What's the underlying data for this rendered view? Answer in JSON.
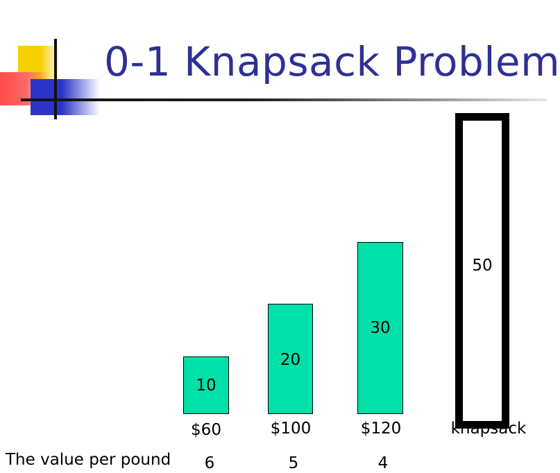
{
  "title": "0-1 Knapsack Problem",
  "items": [
    {
      "weight": "10",
      "price": "$60",
      "value_per_pound": "6"
    },
    {
      "weight": "20",
      "price": "$100",
      "value_per_pound": "5"
    },
    {
      "weight": "30",
      "price": "$120",
      "value_per_pound": "4"
    }
  ],
  "knapsack": {
    "capacity": "50",
    "label": "knapsack"
  },
  "value_per_pound_label": "The value per pound",
  "colors": {
    "item_fill": "#00e0a8",
    "title": "#2e3192"
  }
}
